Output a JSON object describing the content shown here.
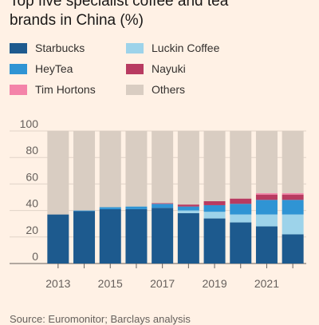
{
  "title_line1": "Top five specialist coffee and tea",
  "title_line2": "brands in China (%)",
  "source": "Source: Euromonitor; Barclays analysis",
  "chart_data": {
    "type": "bar",
    "stacked": true,
    "categories": [
      "2013",
      "2014",
      "2015",
      "2016",
      "2017",
      "2018",
      "2019",
      "2020",
      "2021",
      "2022"
    ],
    "x_tick_labels": [
      "2013",
      "",
      "2015",
      "",
      "2017",
      "",
      "2019",
      "",
      "2021",
      ""
    ],
    "ylim": [
      0,
      100
    ],
    "y_ticks": [
      0,
      20,
      40,
      60,
      80,
      100
    ],
    "grid": true,
    "legend_position": "top",
    "series": [
      {
        "name": "Starbucks",
        "color": "#1d5a8e",
        "values": [
          37,
          39.5,
          41,
          41,
          42,
          38,
          34,
          31,
          28,
          22
        ]
      },
      {
        "name": "Luckin Coffee",
        "color": "#9dd3ea",
        "values": [
          0,
          0,
          0,
          0,
          0,
          2,
          5,
          6,
          9,
          15
        ]
      },
      {
        "name": "HeyTea",
        "color": "#2f94d4",
        "values": [
          0,
          0.5,
          1.5,
          2,
          3,
          3,
          5,
          8,
          11,
          11
        ]
      },
      {
        "name": "Nayuki",
        "color": "#b83b61",
        "values": [
          0,
          0,
          0,
          0,
          0.5,
          1.5,
          3,
          4,
          4,
          4
        ]
      },
      {
        "name": "Tim Hortons",
        "color": "#f483a9",
        "values": [
          0,
          0,
          0,
          0,
          0,
          0,
          0,
          0,
          1,
          1
        ]
      },
      {
        "name": "Others",
        "color": "#d9cdc2",
        "values": [
          63,
          60,
          57.5,
          57,
          54.5,
          55.5,
          53,
          51,
          47,
          47
        ]
      }
    ]
  }
}
